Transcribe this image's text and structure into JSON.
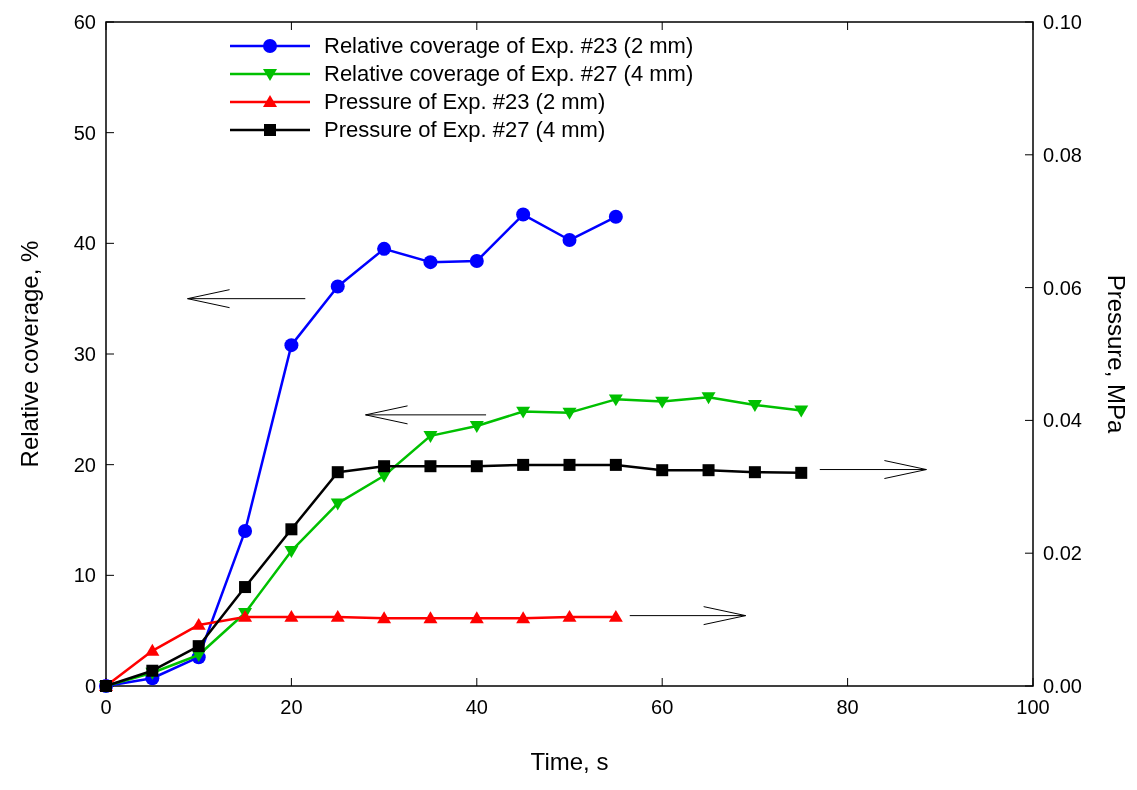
{
  "chart_data": {
    "type": "line",
    "xlabel": "Time, s",
    "ylabel": "Relative coverage, %",
    "y2label": "Pressure, MPa",
    "xlim": [
      0,
      100
    ],
    "xticks": [
      0,
      20,
      40,
      60,
      80,
      100
    ],
    "ylim": [
      0,
      60
    ],
    "yticks": [
      0,
      10,
      20,
      30,
      40,
      50,
      60
    ],
    "y2lim": [
      0,
      0.1
    ],
    "y2ticks": [
      {
        "value": 0,
        "label": "0.00"
      },
      {
        "value": 0.02,
        "label": "0.02"
      },
      {
        "value": 0.04,
        "label": "0.04"
      },
      {
        "value": 0.06,
        "label": "0.06"
      },
      {
        "value": 0.08,
        "label": "0.08"
      },
      {
        "value": 0.1,
        "label": "0.10"
      }
    ],
    "legend": "top",
    "grid": false,
    "line_style": "solid",
    "series": [
      {
        "name": "Relative coverage of Exp. #23 (2 mm)",
        "color": "#0000ff",
        "marker": "circle",
        "x": [
          0,
          5,
          10,
          15,
          20,
          25,
          30,
          35,
          40,
          45,
          50,
          55
        ],
        "values": [
          0,
          0.7,
          2.6,
          14.0,
          30.8,
          36.1,
          39.5,
          38.3,
          38.4,
          42.6,
          40.3,
          42.4
        ]
      },
      {
        "name": "Relative coverage of Exp. #27 (4 mm)",
        "color": "#00c000",
        "marker": "triangle-down",
        "x": [
          0,
          5,
          10,
          15,
          20,
          25,
          30,
          35,
          40,
          45,
          50,
          55,
          60,
          65,
          70,
          75
        ],
        "values": [
          0,
          1.2,
          2.8,
          6.6,
          12.2,
          16.5,
          19.0,
          22.6,
          23.5,
          24.8,
          24.7,
          25.9,
          25.7,
          26.1,
          25.4,
          24.9
        ]
      },
      {
        "name": "Pressure of Exp. #23 (2 mm)",
        "color": "#ff0000",
        "marker": "triangle",
        "axis": "y2",
        "x": [
          0,
          5,
          10,
          15,
          20,
          25,
          30,
          35,
          40,
          45,
          50,
          55
        ],
        "values": [
          0,
          0.0053,
          0.0092,
          0.0104,
          0.0104,
          0.0104,
          0.0102,
          0.0102,
          0.0102,
          0.0102,
          0.0104,
          0.0104
        ]
      },
      {
        "name": "Pressure of Exp. #27 (4 mm)",
        "color": "#000000",
        "marker": "square",
        "axis": "y2",
        "x": [
          0,
          5,
          10,
          15,
          20,
          25,
          30,
          35,
          40,
          45,
          50,
          55,
          60,
          65,
          70,
          75
        ],
        "values": [
          0,
          0.0023,
          0.006,
          0.0149,
          0.0236,
          0.0322,
          0.0331,
          0.0331,
          0.0331,
          0.0333,
          0.0333,
          0.0333,
          0.0325,
          0.0325,
          0.0322,
          0.0321
        ]
      }
    ]
  }
}
